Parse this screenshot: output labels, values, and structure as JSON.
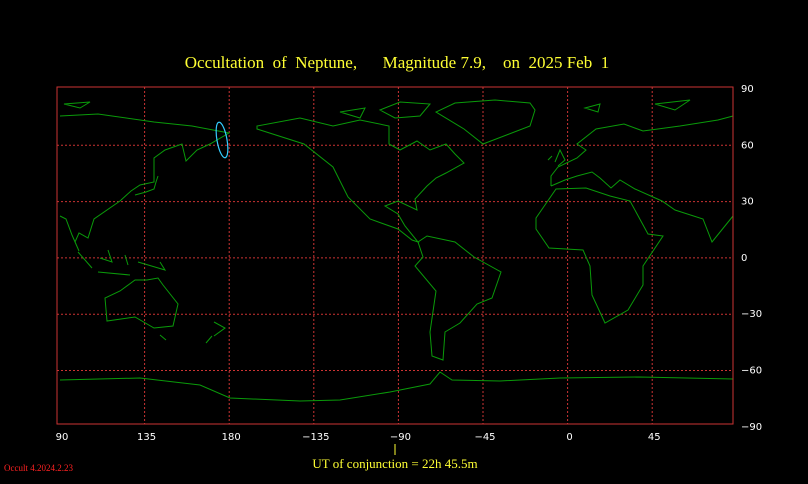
{
  "header": {
    "title": "Occultation  of  Neptune,      Magnitude 7.9,    on  2025 Feb  1"
  },
  "map": {
    "longitude_labels": [
      "90",
      "135",
      "180",
      "−135",
      "−90",
      "−45",
      "0",
      "45"
    ],
    "latitude_labels": [
      "90",
      "60",
      "30",
      "0",
      "−30",
      "−60",
      "−90"
    ]
  },
  "footer": {
    "conjunction": "UT of conjunction = 22h 45.5m",
    "version": "Occult 4.2024.2.23"
  }
}
